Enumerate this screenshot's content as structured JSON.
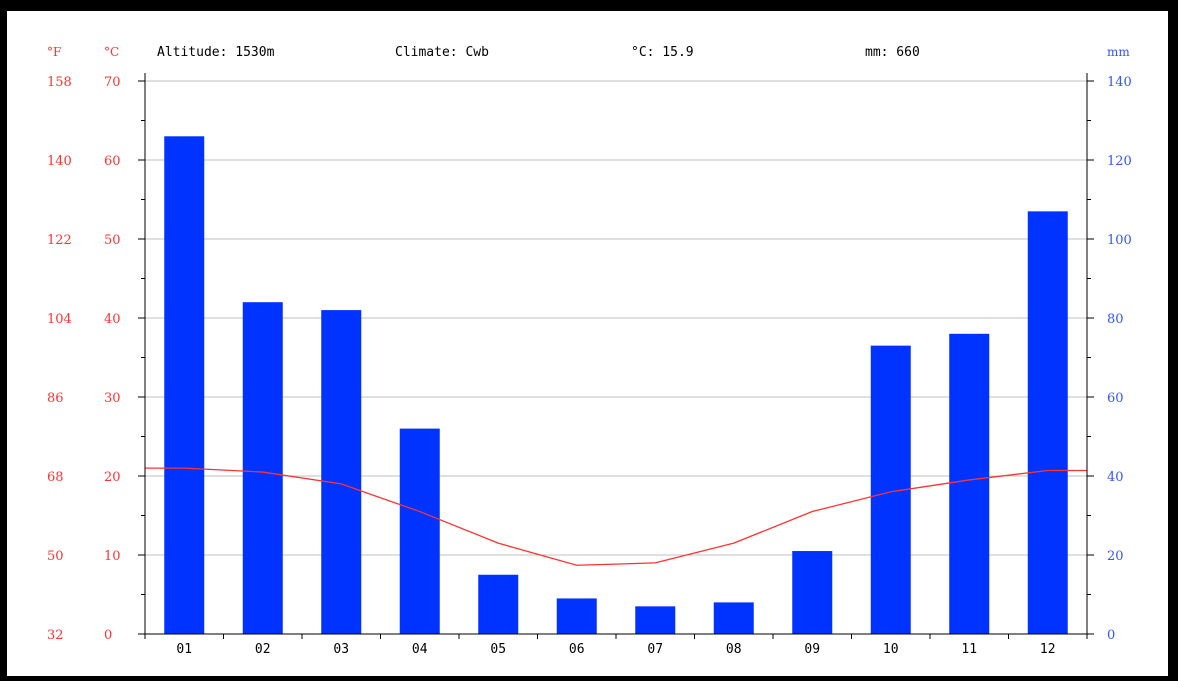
{
  "header": {
    "altitude": "Altitude: 1530m",
    "climate": "Climate: Cwb",
    "mean_temp": "°C: 15.9",
    "precip_total": "mm: 660"
  },
  "axes": {
    "fahrenheit_unit": "°F",
    "celsius_unit": "°C",
    "precip_unit": "mm",
    "fahrenheit_ticks": [
      "158",
      "140",
      "122",
      "104",
      "86",
      "68",
      "50",
      "32"
    ],
    "celsius_ticks": [
      "70",
      "60",
      "50",
      "40",
      "30",
      "20",
      "10",
      "0"
    ],
    "precip_ticks": [
      "140",
      "120",
      "100",
      "80",
      "60",
      "40",
      "20",
      "0"
    ]
  },
  "colors": {
    "temperature": "#ff3333",
    "precipitation": "#0033ff",
    "grid": "#c0c0c0",
    "axis": "#000000"
  },
  "chart_data": {
    "type": "bar",
    "categories": [
      "01",
      "02",
      "03",
      "04",
      "05",
      "06",
      "07",
      "08",
      "09",
      "10",
      "11",
      "12"
    ],
    "series": [
      {
        "name": "mm",
        "type": "bar",
        "axis": "right",
        "values": [
          126,
          84,
          82,
          52,
          15,
          9,
          7,
          8,
          21,
          73,
          76,
          107
        ]
      },
      {
        "name": "°C",
        "type": "line",
        "axis": "left",
        "values": [
          21,
          20.5,
          19,
          15.5,
          11.5,
          8.7,
          9,
          11.5,
          15.5,
          18,
          19.5,
          20.7
        ]
      }
    ],
    "ylim_left": [
      0,
      70
    ],
    "ylim_right": [
      0,
      140
    ],
    "grid": true
  }
}
